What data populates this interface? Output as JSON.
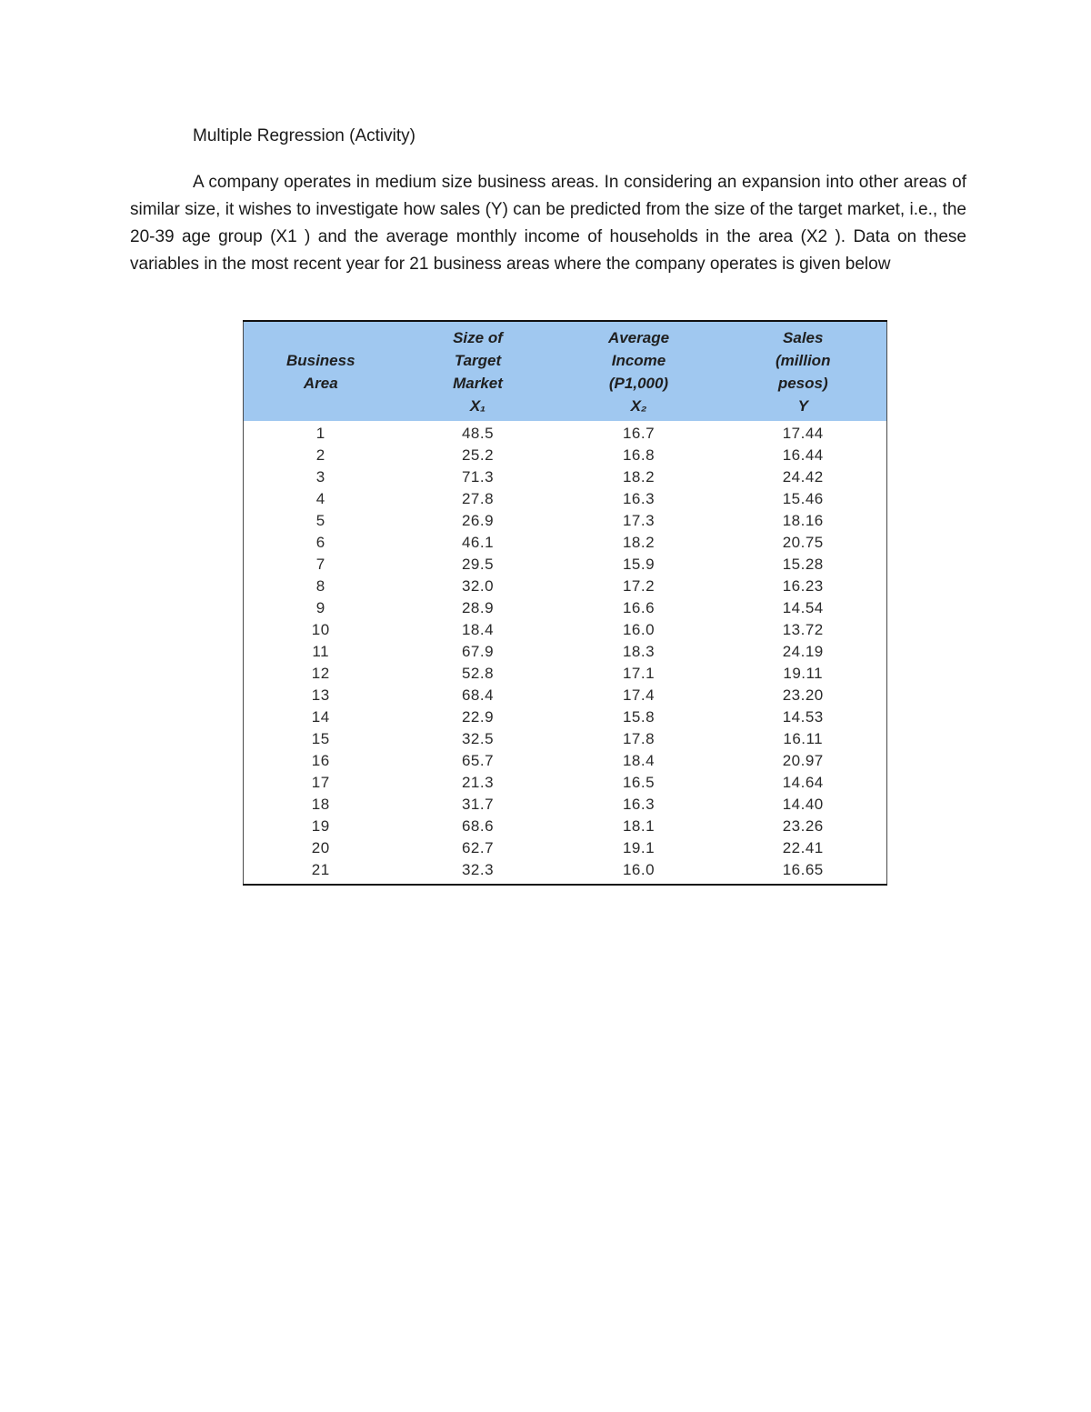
{
  "page": {
    "title": "Multiple Regression (Activity)",
    "paragraph": "A company operates in medium size business areas. In considering an expansion into other areas of similar size, it wishes to investigate how sales (Y) can be predicted from the size of the target market, i.e., the 20-39 age group (X1 ) and the average monthly income of households in the area (X2 ). Data on these variables in the most recent year for 21 business areas where the company operates is given below"
  },
  "table": {
    "header_bg": "#a0c8f0",
    "columns": [
      {
        "label": "Business\nArea"
      },
      {
        "label": "Size of\nTarget\nMarket\nX₁"
      },
      {
        "label": "Average\nIncome\n(P1,000)\nX₂"
      },
      {
        "label": "Sales\n(million\npesos)\nY"
      }
    ],
    "rows": [
      [
        "1",
        "48.5",
        "16.7",
        "17.44"
      ],
      [
        "2",
        "25.2",
        "16.8",
        "16.44"
      ],
      [
        "3",
        "71.3",
        "18.2",
        "24.42"
      ],
      [
        "4",
        "27.8",
        "16.3",
        "15.46"
      ],
      [
        "5",
        "26.9",
        "17.3",
        "18.16"
      ],
      [
        "6",
        "46.1",
        "18.2",
        "20.75"
      ],
      [
        "7",
        "29.5",
        "15.9",
        "15.28"
      ],
      [
        "8",
        "32.0",
        "17.2",
        "16.23"
      ],
      [
        "9",
        "28.9",
        "16.6",
        "14.54"
      ],
      [
        "10",
        "18.4",
        "16.0",
        "13.72"
      ],
      [
        "11",
        "67.9",
        "18.3",
        "24.19"
      ],
      [
        "12",
        "52.8",
        "17.1",
        "19.11"
      ],
      [
        "13",
        "68.4",
        "17.4",
        "23.20"
      ],
      [
        "14",
        "22.9",
        "15.8",
        "14.53"
      ],
      [
        "15",
        "32.5",
        "17.8",
        "16.11"
      ],
      [
        "16",
        "65.7",
        "18.4",
        "20.97"
      ],
      [
        "17",
        "21.3",
        "16.5",
        "14.64"
      ],
      [
        "18",
        "31.7",
        "16.3",
        "14.40"
      ],
      [
        "19",
        "68.6",
        "18.1",
        "23.26"
      ],
      [
        "20",
        "62.7",
        "19.1",
        "22.41"
      ],
      [
        "21",
        "32.3",
        "16.0",
        "16.65"
      ]
    ]
  }
}
